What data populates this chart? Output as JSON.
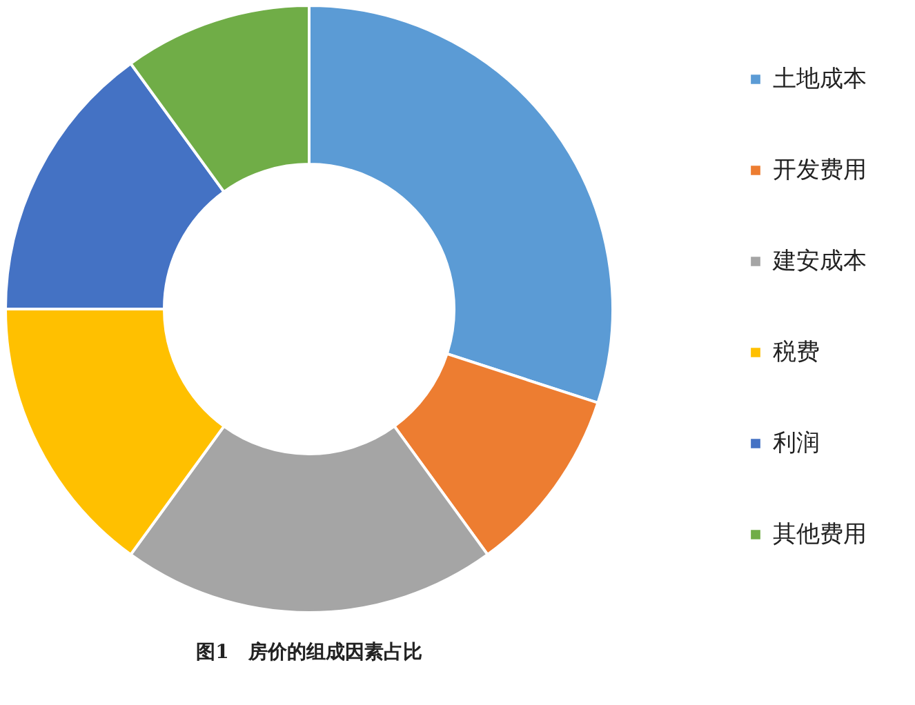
{
  "chart_data": {
    "type": "donut",
    "title": "图1　房价的组成因素占比",
    "categories": [
      "土地成本",
      "开发费用",
      "建安成本",
      "税费",
      "利润",
      "其他费用"
    ],
    "values": [
      30,
      10,
      20,
      15,
      15,
      10
    ],
    "colors": [
      "#5b9bd5",
      "#ed7d31",
      "#a5a5a5",
      "#ffc000",
      "#4472c4",
      "#70ad47"
    ],
    "legend": "right"
  }
}
